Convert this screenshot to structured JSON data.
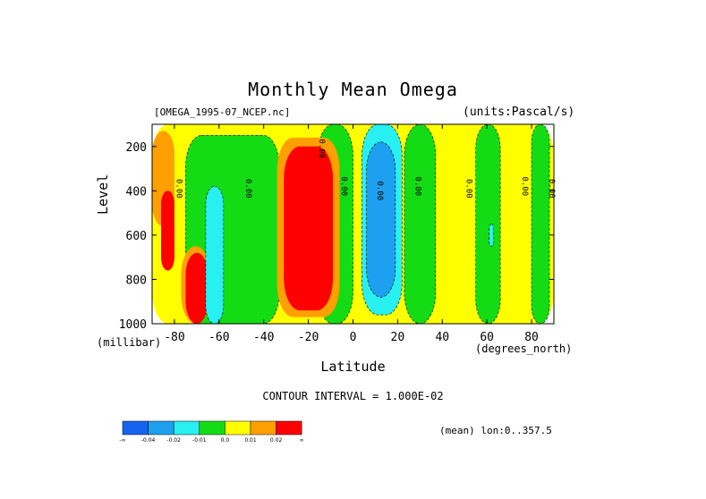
{
  "title": "Monthly Mean Omega",
  "file_label": "[OMEGA_1995-07_NCEP.nc]",
  "units_label": "(units:Pascal/s)",
  "y_axis_title": "Level",
  "y_axis_unit": "(millibar)",
  "x_axis_title": "Latitude",
  "x_axis_unit": "(degrees_north)",
  "contour_note": "CONTOUR INTERVAL = 1.000E-02",
  "mean_note": "(mean) lon:0..357.5",
  "contour_labels": [
    "0.00",
    "0.00",
    "0.00",
    "0.00",
    "0.00",
    "0.00",
    "0.00",
    "0.00",
    "0.00"
  ],
  "colorbar": {
    "colors": [
      "#1464f0",
      "#1ea0f0",
      "#28f0f0",
      "#14dc14",
      "#ffff00",
      "#ffa000",
      "#ff0000"
    ],
    "labels": [
      "-∞",
      "-0.04",
      "-0.02",
      "-0.01",
      "0.0",
      "0.01",
      "0.02",
      "∞"
    ]
  },
  "chart_data": {
    "type": "heatmap",
    "x_ticks": [
      -80,
      -60,
      -40,
      -20,
      0,
      20,
      40,
      60,
      80
    ],
    "x_tick_labels": [
      "-80",
      "-60",
      "-40",
      "-20",
      "0",
      "20",
      "40",
      "60",
      "80"
    ],
    "y_ticks": [
      200,
      400,
      600,
      800,
      1000
    ],
    "y_tick_labels": [
      "200",
      "400",
      "600",
      "800",
      "1000"
    ],
    "xlim": [
      -90,
      90
    ],
    "ylim": [
      1000,
      100
    ],
    "levels": [
      -0.04,
      -0.02,
      -0.01,
      0.0,
      0.01,
      0.02
    ],
    "regions": [
      {
        "lat_min": -90,
        "lat_max": 90,
        "p_min": 100,
        "p_max": 1000,
        "value": 0.005
      },
      {
        "lat_min": -75,
        "lat_max": -33,
        "p_min": 150,
        "p_max": 1000,
        "value": -0.005
      },
      {
        "lat_min": -16,
        "lat_max": 0,
        "p_min": 100,
        "p_max": 1000,
        "value": -0.005
      },
      {
        "lat_min": 23,
        "lat_max": 37,
        "p_min": 100,
        "p_max": 1000,
        "value": -0.005
      },
      {
        "lat_min": 55,
        "lat_max": 66,
        "p_min": 100,
        "p_max": 1000,
        "value": -0.005
      },
      {
        "lat_min": 80,
        "lat_max": 88,
        "p_min": 100,
        "p_max": 1000,
        "value": -0.005
      },
      {
        "lat_min": -90,
        "lat_max": -80,
        "p_min": 130,
        "p_max": 560,
        "value": 0.015
      },
      {
        "lat_min": -34,
        "lat_max": -6,
        "p_min": 160,
        "p_max": 970,
        "value": 0.015
      },
      {
        "lat_min": -31,
        "lat_max": -9,
        "p_min": 200,
        "p_max": 940,
        "value": 0.025
      },
      {
        "lat_min": -86,
        "lat_max": -80,
        "p_min": 400,
        "p_max": 760,
        "value": 0.025
      },
      {
        "lat_min": -77,
        "lat_max": -64,
        "p_min": 650,
        "p_max": 1000,
        "value": 0.015
      },
      {
        "lat_min": -75,
        "lat_max": -65,
        "p_min": 680,
        "p_max": 1000,
        "value": 0.025
      },
      {
        "lat_min": -66,
        "lat_max": -58,
        "p_min": 380,
        "p_max": 1000,
        "value": -0.015
      },
      {
        "lat_min": 4,
        "lat_max": 22,
        "p_min": 100,
        "p_max": 960,
        "value": -0.015
      },
      {
        "lat_min": 6,
        "lat_max": 19,
        "p_min": 180,
        "p_max": 880,
        "value": -0.03
      },
      {
        "lat_min": 61,
        "lat_max": 63,
        "p_min": 550,
        "p_max": 650,
        "value": -0.015
      }
    ]
  }
}
